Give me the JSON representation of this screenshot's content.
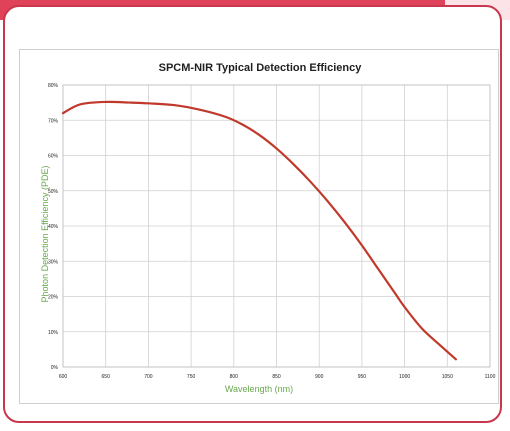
{
  "chart_data": {
    "type": "line",
    "title": "SPCM-NIR Typical Detection Efficiency",
    "xlabel": "Wavelength (nm)",
    "ylabel": "Photon Detection Efficiency (PDE)",
    "xlim": [
      600,
      1100
    ],
    "ylim": [
      0,
      80
    ],
    "x_ticks": [
      600,
      650,
      700,
      750,
      800,
      850,
      900,
      950,
      1000,
      1050,
      1100
    ],
    "y_ticks": [
      0,
      10,
      20,
      30,
      40,
      50,
      60,
      70,
      80
    ],
    "y_tick_labels": [
      "0%",
      "10%",
      "20%",
      "30%",
      "40%",
      "50%",
      "60%",
      "70%",
      "80%"
    ],
    "grid": true,
    "series": [
      {
        "color": "#c0392b",
        "x": [
          600,
          620,
          650,
          680,
          700,
          730,
          760,
          790,
          810,
          830,
          850,
          870,
          890,
          910,
          930,
          950,
          970,
          990,
          1000,
          1020,
          1040,
          1060
        ],
        "values": [
          72,
          74.5,
          75.2,
          75.0,
          74.8,
          74.3,
          73.0,
          71.0,
          68.8,
          65.8,
          62.0,
          57.5,
          52.5,
          47.0,
          41.0,
          34.5,
          27.5,
          20.5,
          17.0,
          11.0,
          6.5,
          2.2
        ]
      }
    ]
  }
}
